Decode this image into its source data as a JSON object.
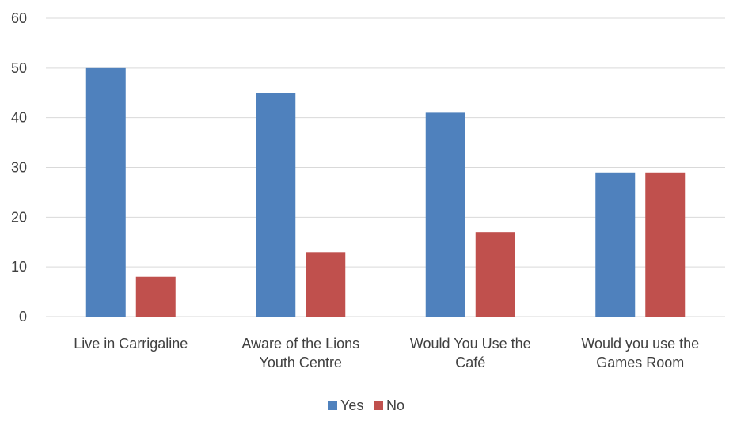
{
  "chart_data": {
    "type": "bar",
    "categories": [
      [
        "Live in Carrigaline"
      ],
      [
        "Aware of the Lions",
        "Youth Centre"
      ],
      [
        "Would You Use the",
        "Café"
      ],
      [
        "Would you use the",
        "Games Room"
      ]
    ],
    "series": [
      {
        "name": "Yes",
        "color": "#4F81BD",
        "values": [
          50,
          45,
          41,
          29
        ]
      },
      {
        "name": "No",
        "color": "#C0504D",
        "values": [
          8,
          13,
          17,
          29
        ]
      }
    ],
    "yticks": [
      "0",
      "10",
      "20",
      "30",
      "40",
      "50",
      "60"
    ],
    "ylim": [
      0,
      60
    ],
    "grid": true,
    "legend": "bottom"
  }
}
